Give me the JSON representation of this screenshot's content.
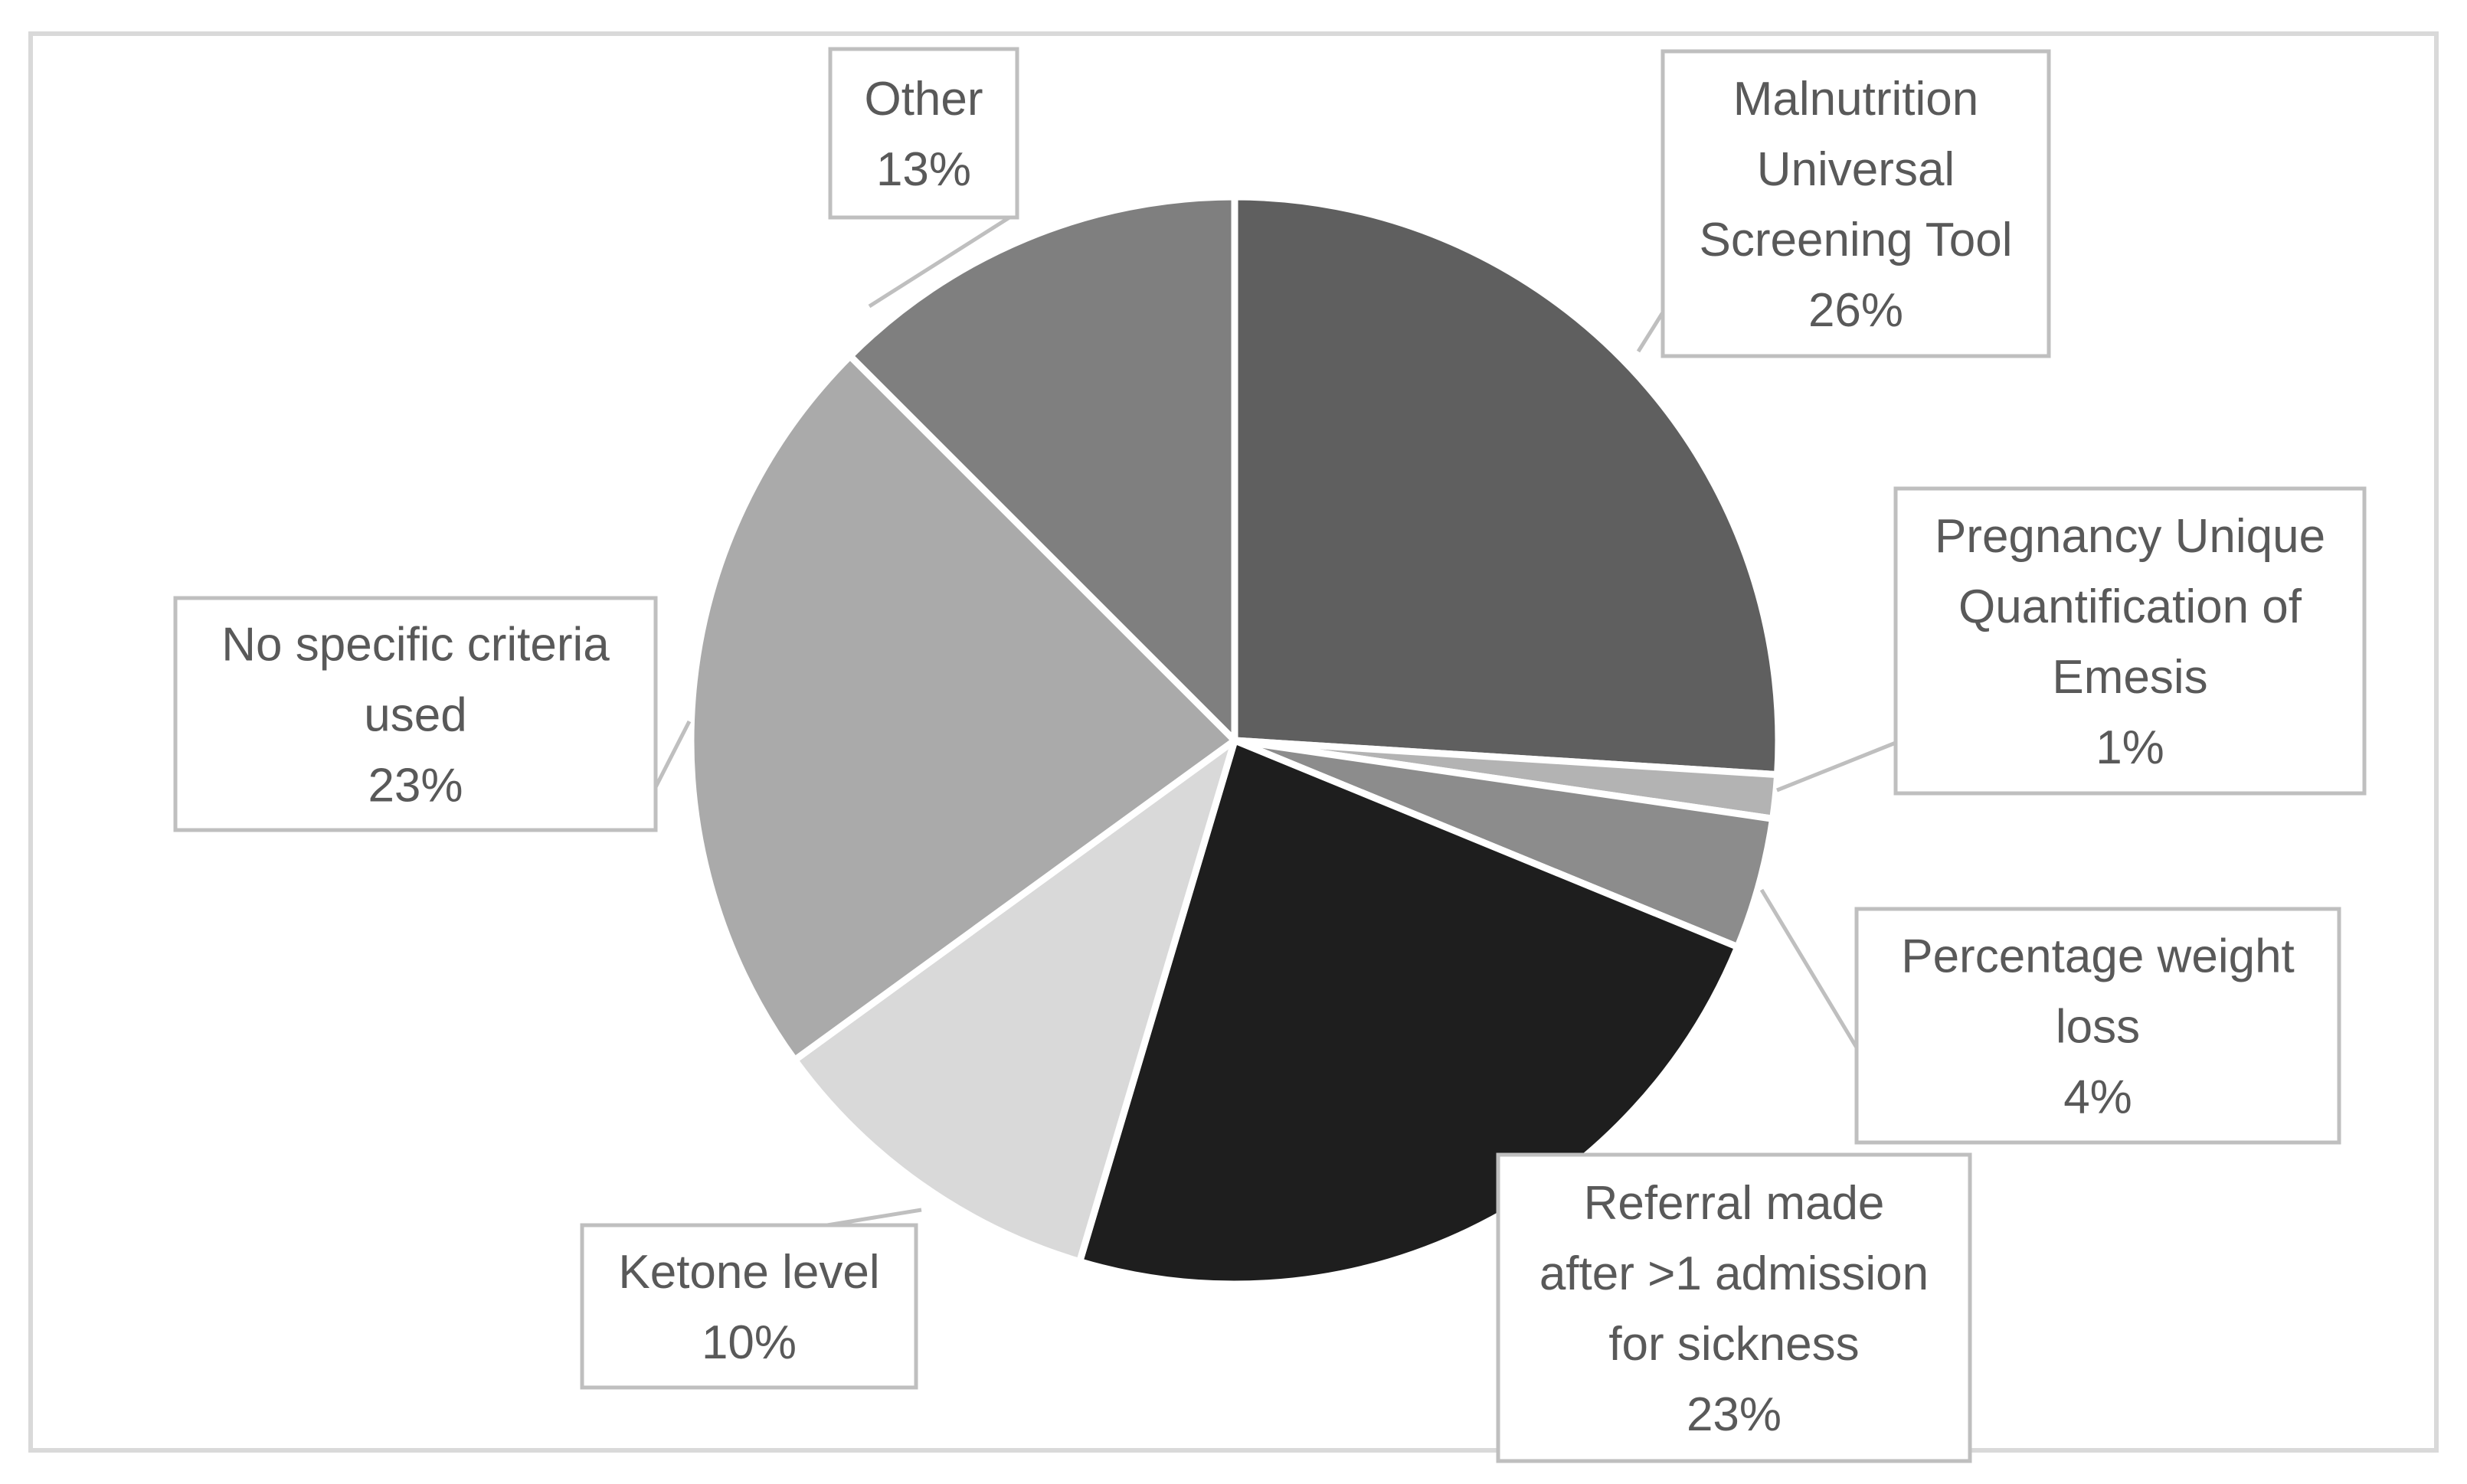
{
  "chart_data": {
    "type": "pie",
    "title": "",
    "start_angle_deg": 0,
    "direction": "clockwise",
    "slices": [
      {
        "name": "malnutrition",
        "label_lines": [
          "Malnutrition",
          "Universal",
          "Screening Tool"
        ],
        "percent_label": "26%",
        "value": 26,
        "color": "#5f5f5f"
      },
      {
        "name": "pregnancy-unique",
        "label_lines": [
          "Pregnancy Unique",
          "Quantification of",
          "Emesis"
        ],
        "percent_label": "1%",
        "value": 1.3,
        "color": "#b3b3b3"
      },
      {
        "name": "weight-loss",
        "label_lines": [
          "Percentage weight",
          "loss"
        ],
        "percent_label": "4%",
        "value": 3.9,
        "color": "#8c8c8c"
      },
      {
        "name": "referral",
        "label_lines": [
          "Referral made",
          "after >1 admission",
          "for sickness"
        ],
        "percent_label": "23%",
        "value": 23.4,
        "color": "#1e1e1e"
      },
      {
        "name": "ketone",
        "label_lines": [
          "Ketone level"
        ],
        "percent_label": "10%",
        "value": 10.4,
        "color": "#d9d9d9"
      },
      {
        "name": "no-specific",
        "label_lines": [
          "No specific criteria",
          "used"
        ],
        "percent_label": "23%",
        "value": 22.5,
        "color": "#aaaaaa"
      },
      {
        "name": "other",
        "label_lines": [
          "Other"
        ],
        "percent_label": "13%",
        "value": 12.5,
        "color": "#7f7f7f"
      }
    ]
  }
}
